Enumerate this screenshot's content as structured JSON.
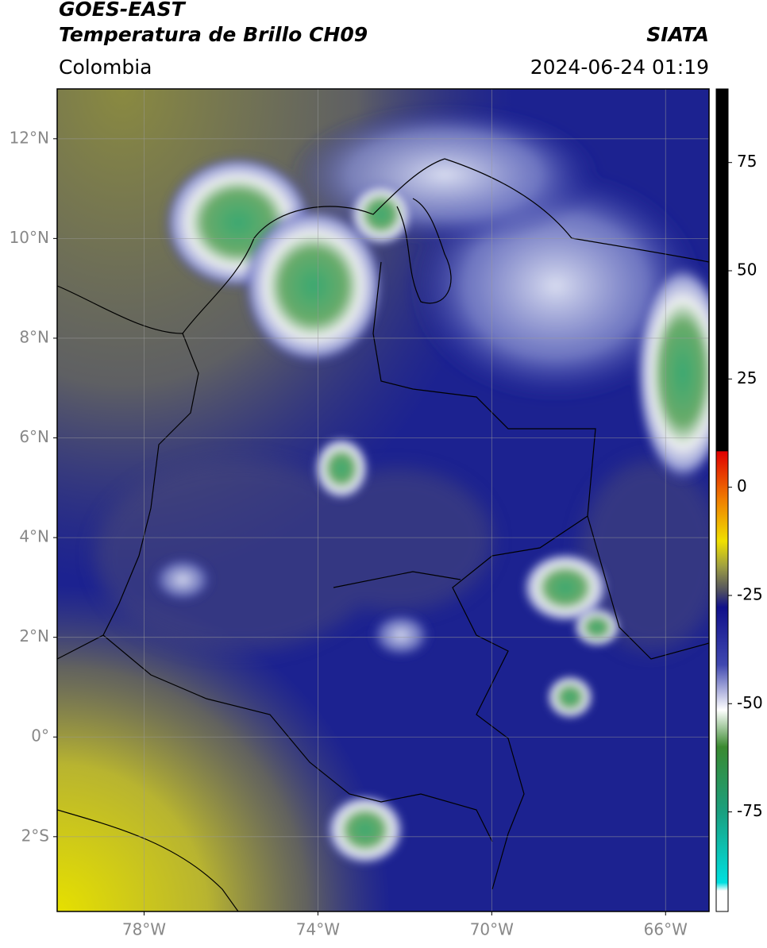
{
  "header": {
    "title": "GOES-EAST",
    "subtitle": "Temperatura de Brillo CH09",
    "source": "SIATA",
    "region": "Colombia",
    "datetime": "2024-06-24 01:19"
  },
  "map": {
    "xlim": [
      -80,
      -65
    ],
    "ylim": [
      -3.5,
      13
    ],
    "xticks": [
      {
        "value": -78,
        "label": "78°W"
      },
      {
        "value": -74,
        "label": "74°W"
      },
      {
        "value": -70,
        "label": "70°W"
      },
      {
        "value": -66,
        "label": "66°W"
      }
    ],
    "yticks": [
      {
        "value": 12,
        "label": "12°N"
      },
      {
        "value": 10,
        "label": "10°N"
      },
      {
        "value": 8,
        "label": "8°N"
      },
      {
        "value": 6,
        "label": "6°N"
      },
      {
        "value": 4,
        "label": "4°N"
      },
      {
        "value": 2,
        "label": "2°N"
      },
      {
        "value": 0,
        "label": "0°"
      },
      {
        "value": -2,
        "label": "2°S"
      }
    ],
    "grid": true
  },
  "colorbar": {
    "lim": [
      -98,
      92
    ],
    "ticks": [
      75,
      50,
      25,
      0,
      -25,
      -50,
      -75
    ]
  }
}
